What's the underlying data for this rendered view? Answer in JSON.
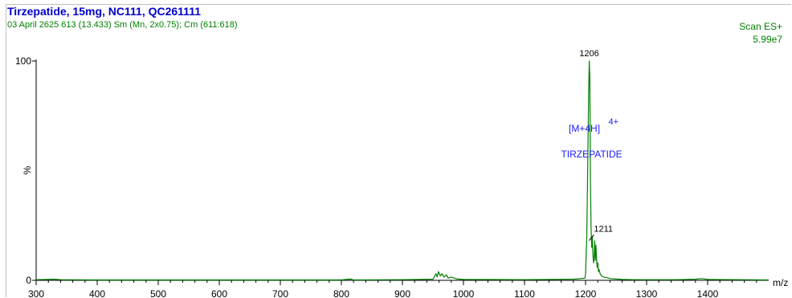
{
  "header": {
    "title": "Tirzepatide, 15mg, NC111, QC261111",
    "subtitle": "03 April 2625  613 (13.433) Sm (Mn, 2x0.75); Cm (611:618)",
    "scan_mode": "Scan ES+",
    "intensity": "5.99e7"
  },
  "colors": {
    "title": "#0000cc",
    "trace": "#008000",
    "annotation": "#1a1aff",
    "axis": "#000000"
  },
  "chart_data": {
    "type": "line",
    "xlabel": "m/z",
    "ylabel": "%",
    "xlim": [
      300,
      1500
    ],
    "ylim": [
      0,
      100
    ],
    "x_ticks": [
      300,
      400,
      500,
      600,
      700,
      800,
      900,
      1000,
      1100,
      1200,
      1300,
      1400
    ],
    "y_ticks": [
      0,
      100
    ],
    "series": [
      {
        "x": [
          300,
          330,
          340,
          400,
          500,
          600,
          700,
          800,
          815,
          820,
          900,
          950,
          955,
          957,
          959,
          962,
          965,
          968,
          972,
          975,
          980,
          990,
          1000,
          1100,
          1180,
          1199,
          1200,
          1202,
          1204,
          1205,
          1206,
          1207,
          1208,
          1209,
          1210,
          1211,
          1212,
          1213,
          1214,
          1215,
          1216,
          1217,
          1218,
          1219,
          1220,
          1221,
          1222,
          1224,
          1226,
          1230,
          1235,
          1240,
          1250,
          1260,
          1280,
          1300,
          1350,
          1380,
          1390,
          1400,
          1450,
          1500
        ],
        "y": [
          0.3,
          0.5,
          0.3,
          0.2,
          0.2,
          0.2,
          0.2,
          0.2,
          0.6,
          0.2,
          0.3,
          0.5,
          3,
          1.5,
          4,
          2,
          3,
          1.5,
          2.5,
          1,
          1.5,
          0.6,
          0.4,
          0.3,
          0.5,
          1,
          3,
          20,
          60,
          85,
          100,
          92,
          45,
          25,
          15,
          20,
          12,
          8,
          10,
          18,
          9,
          16,
          10,
          6,
          8,
          4,
          5,
          3,
          2,
          1.5,
          1.2,
          0.8,
          0.6,
          0.4,
          0.3,
          0.3,
          0.3,
          0.5,
          0.8,
          0.4,
          0.3,
          0.2
        ]
      }
    ],
    "peak_labels": [
      {
        "x": 1206,
        "y": 100,
        "text": "1206"
      },
      {
        "x": 1211,
        "y": 20,
        "text": "1211"
      }
    ],
    "annotation": {
      "ion": "[M+4H]",
      "charge": "4+",
      "compound": "TIRZEPATIDE"
    }
  }
}
